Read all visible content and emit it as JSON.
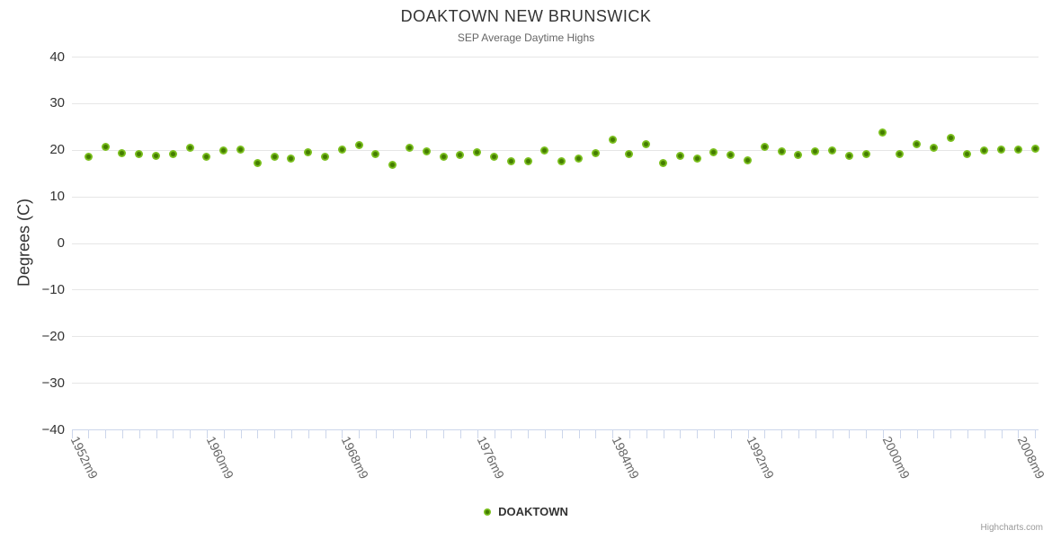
{
  "chart_data": {
    "type": "scatter",
    "title": "DOAKTOWN NEW BRUNSWICK",
    "subtitle": "SEP Average Daytime Highs",
    "xlabel": "",
    "ylabel": "Degrees (C)",
    "ylim": [
      -40,
      40
    ],
    "y_ticks": [
      40,
      30,
      20,
      10,
      0,
      -10,
      -20,
      -30,
      -40
    ],
    "grid": true,
    "legend_position": "bottom-center",
    "x_tick_labels": [
      "1952m9",
      "1960m9",
      "1968m9",
      "1976m9",
      "1984m9",
      "1992m9",
      "2000m9",
      "2008m9"
    ],
    "x_label_interval": 8,
    "x": [
      1952,
      1953,
      1954,
      1955,
      1956,
      1957,
      1958,
      1959,
      1960,
      1961,
      1962,
      1963,
      1964,
      1965,
      1966,
      1967,
      1968,
      1969,
      1970,
      1971,
      1972,
      1973,
      1974,
      1975,
      1976,
      1977,
      1978,
      1979,
      1980,
      1981,
      1982,
      1983,
      1984,
      1985,
      1986,
      1987,
      1988,
      1989,
      1990,
      1991,
      1992,
      1993,
      1994,
      1995,
      1996,
      1997,
      1998,
      1999,
      2000,
      2001,
      2002,
      2003,
      2004,
      2005,
      2006,
      2007,
      2008
    ],
    "series": [
      {
        "name": "DOAKTOWN",
        "color": "#7cc11f",
        "values": [
          18.5,
          20.6,
          19.2,
          19.0,
          18.7,
          19.1,
          20.4,
          18.5,
          19.9,
          20.1,
          17.1,
          18.6,
          18.2,
          19.4,
          18.5,
          20.1,
          21.1,
          19.0,
          16.8,
          20.4,
          19.6,
          18.6,
          18.8,
          19.4,
          18.6,
          17.6,
          17.6,
          19.9,
          17.6,
          18.1,
          19.2,
          22.2,
          19.1,
          21.3,
          17.1,
          18.7,
          18.1,
          19.5,
          18.8,
          17.7,
          20.7,
          19.7,
          18.8,
          19.6,
          19.9,
          18.7,
          19.1,
          23.7,
          19.1,
          21.3,
          20.5,
          22.5,
          19.0,
          19.9,
          20.1,
          20.1,
          20.2
        ]
      }
    ]
  },
  "legend": {
    "label": "DOAKTOWN"
  },
  "credits": {
    "label": "Highcharts.com"
  },
  "colors": {
    "marker_outer": "#7cc11f",
    "marker_inner": "#447c00",
    "grid_line": "#e6e6e6",
    "axis_line": "#ccd6eb",
    "tick": "#ccd6eb",
    "title_text": "#333333",
    "subtitle_text": "#666666",
    "x_label_text": "#666666",
    "y_label_text": "#333333",
    "credits_text": "#999999",
    "background": "#ffffff"
  }
}
